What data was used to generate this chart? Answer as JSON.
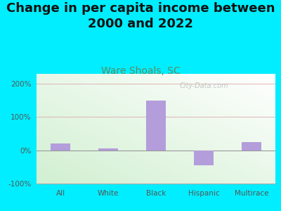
{
  "title": "Change in per capita income between\n2000 and 2022",
  "subtitle": "Ware Shoals, SC",
  "categories": [
    "All",
    "White",
    "Black",
    "Hispanic",
    "Multirace"
  ],
  "values": [
    20,
    5,
    150,
    -45,
    25
  ],
  "bar_color": "#b39ddb",
  "title_fontsize": 13,
  "subtitle_fontsize": 10,
  "subtitle_color": "#5d8a5e",
  "tick_color": "#555555",
  "background_outer": "#00eeff",
  "ylim": [
    -100,
    230
  ],
  "yticks": [
    -100,
    0,
    100,
    200
  ],
  "ytick_labels": [
    "-100%",
    "0%",
    "100%",
    "200%"
  ],
  "watermark": "City-Data.com",
  "grid_color": "#ddaaaa"
}
